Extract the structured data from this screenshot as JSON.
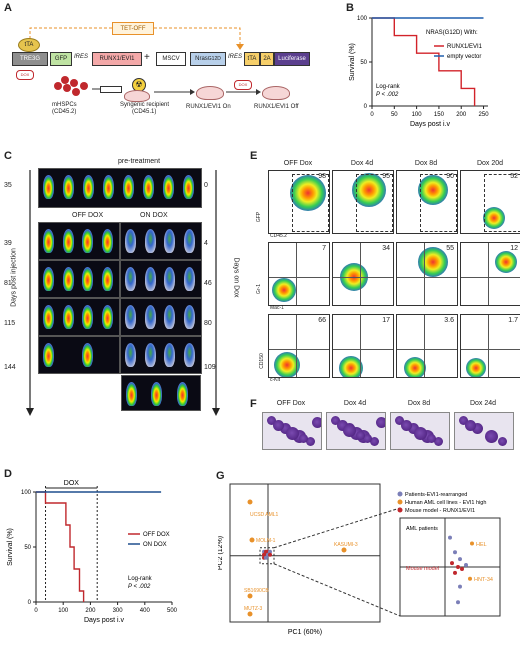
{
  "panels": {
    "A": "A",
    "B": "B",
    "C": "C",
    "D": "D",
    "E": "E",
    "F": "F",
    "G": "G"
  },
  "panelA": {
    "tetoff": "TET-OFF",
    "tta": "tTA",
    "tre3g": "TRE3G",
    "gfp": "GFP",
    "ires1": "IRES",
    "runx": "RUNX1/EVI1",
    "plus": "+",
    "mscv": "MSCV",
    "nras": "Nras",
    "nras_sup": "G12D",
    "ires2": "IRES",
    "tta2": "tTA",
    "p2a": "2A",
    "luc": "Luciferase",
    "dox": "DOX",
    "mhspc": "mHSPCs",
    "mhspc2": "(CD45.2)",
    "recip": "Syngenic recipient",
    "recip2": "(CD45.1)",
    "on": "RUNX1/EVI1 On",
    "off": "RUNX1/EVI1 Off"
  },
  "panelB": {
    "title": "NRAS(G12D) With:",
    "ylabel": "Survival (%)",
    "xlabel": "Days post i.v",
    "legend": [
      {
        "name": "RUNX1/EVI1",
        "color": "#d2232a"
      },
      {
        "name": "empty vector",
        "color": "#1f5fae"
      }
    ],
    "stat1": "Log-rank",
    "stat2": "P < .002",
    "yticks": [
      "0",
      "50",
      "100"
    ],
    "xticks": [
      "0",
      "50",
      "100",
      "150",
      "200",
      "250"
    ]
  },
  "chart_data": [
    {
      "type": "line",
      "panel": "B",
      "xlabel": "Days post i.v",
      "ylabel": "Survival (%)",
      "xlim": [
        0,
        260
      ],
      "ylim": [
        0,
        100
      ],
      "series": [
        {
          "name": "RUNX1/EVI1",
          "x": [
            0,
            50,
            50,
            100,
            100,
            150,
            150,
            200,
            200,
            230,
            230
          ],
          "y": [
            100,
            100,
            80,
            80,
            60,
            60,
            40,
            40,
            20,
            20,
            0
          ]
        },
        {
          "name": "empty vector",
          "x": [
            0,
            250
          ],
          "y": [
            100,
            100
          ]
        }
      ]
    },
    {
      "type": "line",
      "panel": "D",
      "xlabel": "Days post i.v",
      "ylabel": "Survival (%)",
      "xlim": [
        0,
        500
      ],
      "ylim": [
        0,
        100
      ],
      "series": [
        {
          "name": "OFF DOX",
          "x": [
            0,
            35,
            35,
            110,
            110,
            125,
            125,
            140,
            140,
            160,
            160,
            175,
            175
          ],
          "y": [
            100,
            100,
            90,
            90,
            70,
            70,
            50,
            50,
            30,
            30,
            10,
            10,
            0
          ]
        },
        {
          "name": "ON DOX",
          "x": [
            0,
            460
          ],
          "y": [
            100,
            100
          ]
        }
      ]
    },
    {
      "type": "scatter",
      "panel": "G",
      "xlabel": "PC1 (60%)",
      "ylabel": "PC2 (12%)",
      "series": [
        {
          "name": "Patients-EVI1-rearranged",
          "color": "#7b7fb8"
        },
        {
          "name": "Human AML cell lines - EVI1 high",
          "color": "#e8912a"
        },
        {
          "name": "Mouse model - RUNX1/EVI1",
          "color": "#c0282d"
        }
      ]
    }
  ],
  "panelC": {
    "pre": "pre-treatment",
    "offdox": "OFF DOX",
    "ondox": "ON DOX",
    "left_label": "Days post injection",
    "right_label": "Days on Dox",
    "left_days": [
      "35",
      "39",
      "81",
      "115",
      "144"
    ],
    "right_days": [
      "0",
      "4",
      "46",
      "80",
      "109"
    ]
  },
  "panelD": {
    "ylabel": "Survival (%)",
    "xlabel": "Days post i.v",
    "dox": "DOX",
    "legend": [
      {
        "name": "OFF DOX",
        "color": "#c0282d"
      },
      {
        "name": "ON DOX",
        "color": "#1f4f8e"
      }
    ],
    "stat1": "Log-rank",
    "stat2": "P < .002",
    "yticks": [
      "0",
      "50",
      "100"
    ],
    "xticks": [
      "0",
      "100",
      "200",
      "300",
      "400",
      "500"
    ]
  },
  "panelE": {
    "cols": [
      "OFF Dox",
      "Dox 4d",
      "Dox 8d",
      "Dox 20d"
    ],
    "row1_vals": [
      "98",
      "95",
      "90",
      "52"
    ],
    "row2_vals": [
      "7",
      "34",
      "55",
      "12"
    ],
    "row3_vals": [
      "66",
      "17",
      "3.6",
      "1.7"
    ],
    "axes": {
      "r1y": "GFP",
      "r1x": "CD45.2",
      "r2y": "Gr-1",
      "r2x": "Mac-1",
      "r3y": "CD150",
      "r3x": "c-Kit"
    }
  },
  "panelF": {
    "cols": [
      "OFF Dox",
      "Dox 4d",
      "Dox 8d",
      "Dox 24d"
    ]
  },
  "panelG": {
    "xlabel": "PC1 (60%)",
    "ylabel": "PC2 (12%)",
    "legend": [
      {
        "name": "Patients-EVI1-rearranged",
        "color": "#7b7fb8"
      },
      {
        "name": "Human AML cell lines - EVI1 high",
        "color": "#e8912a"
      },
      {
        "name": "Mouse model - RUNX1/EVI1",
        "color": "#c0282d"
      }
    ],
    "labels": {
      "ucsd": "UCSD AML1",
      "molm": "MOLM-1",
      "kasumi": "KASUMI-3",
      "sb": "SB1690CB",
      "mutz": "MUTZ-3",
      "hel": "HEL",
      "hnt": "HNT-34",
      "aml": "AML patients",
      "mouse": "Mouse model"
    }
  }
}
